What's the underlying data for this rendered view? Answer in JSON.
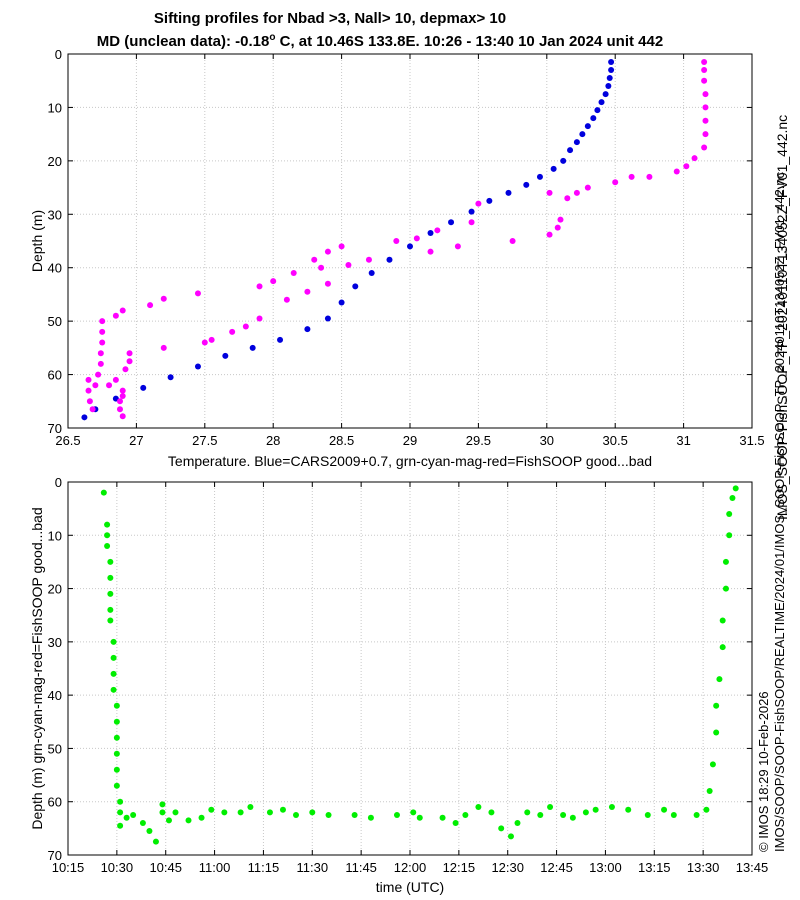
{
  "title_line1": "Sifting profiles for Nbad >3, Nall> 10, depmax> 10",
  "title_line2_prefix": "MD (unclean data): -0.18",
  "title_line2_sup": "o",
  "title_line2_suffix": " C, at 10.46S 133.8E. 10:26 - 13:40 10 Jan 2024 unit 442",
  "side_text_right": "IMOS_SOOP-FishSOOP_TP_20240110T134052Z_FV01_442.nc",
  "side_text_bottom": "IMOS/SOOP/SOOP-FishSOOP/REALTIME/2024/01/IMOS_SOOP-FishSOOP_TP_20240110T134052Z_FV01_442.nc",
  "side_text_credit": "© IMOS 18:29 10-Feb-2026",
  "colors": {
    "cars": "#0000dd",
    "bad": "#ff00ff",
    "good": "#00ee00",
    "grid": "#c8c8c8"
  },
  "chart_data": [
    {
      "type": "scatter",
      "xlabel": "Temperature. Blue=CARS2009+0.7, grn-cyan-mag-red=FishSOOP good...bad",
      "ylabel": "Depth (m)",
      "xlim": [
        26.5,
        31.5
      ],
      "ylim": [
        70,
        0
      ],
      "xticks": [
        "26.5",
        "27",
        "27.5",
        "28",
        "28.5",
        "29",
        "29.5",
        "30",
        "30.5",
        "31",
        "31.5"
      ],
      "yticks": [
        "0",
        "10",
        "20",
        "30",
        "40",
        "50",
        "60",
        "70"
      ],
      "grid": true,
      "series": [
        {
          "color": "#0000dd",
          "points": [
            [
              30.47,
              1.5
            ],
            [
              30.47,
              3
            ],
            [
              30.46,
              4.5
            ],
            [
              30.45,
              6
            ],
            [
              30.43,
              7.5
            ],
            [
              30.4,
              9
            ],
            [
              30.37,
              10.5
            ],
            [
              30.34,
              12
            ],
            [
              30.3,
              13.5
            ],
            [
              30.26,
              15
            ],
            [
              30.22,
              16.5
            ],
            [
              30.17,
              18
            ],
            [
              30.12,
              20
            ],
            [
              30.05,
              21.5
            ],
            [
              29.95,
              23
            ],
            [
              29.85,
              24.5
            ],
            [
              29.72,
              26
            ],
            [
              29.58,
              27.5
            ],
            [
              29.45,
              29.5
            ],
            [
              29.3,
              31.5
            ],
            [
              29.15,
              33.5
            ],
            [
              29.0,
              36
            ],
            [
              28.85,
              38.5
            ],
            [
              28.72,
              41
            ],
            [
              28.6,
              43.5
            ],
            [
              28.5,
              46.5
            ],
            [
              28.4,
              49.5
            ],
            [
              28.25,
              51.5
            ],
            [
              28.05,
              53.5
            ],
            [
              27.85,
              55
            ],
            [
              27.65,
              56.5
            ],
            [
              27.45,
              58.5
            ],
            [
              27.25,
              60.5
            ],
            [
              27.05,
              62.5
            ],
            [
              26.85,
              64.5
            ],
            [
              26.7,
              66.5
            ],
            [
              26.62,
              68
            ]
          ]
        },
        {
          "color": "#ff00ff",
          "points": [
            [
              31.15,
              1.5
            ],
            [
              31.15,
              3
            ],
            [
              31.15,
              5
            ],
            [
              31.16,
              7.5
            ],
            [
              31.16,
              10
            ],
            [
              31.16,
              12.5
            ],
            [
              31.16,
              15
            ],
            [
              31.15,
              17.5
            ],
            [
              31.08,
              19.5
            ],
            [
              31.02,
              21
            ],
            [
              30.95,
              22
            ],
            [
              30.75,
              23
            ],
            [
              30.62,
              23
            ],
            [
              30.5,
              24
            ],
            [
              30.3,
              25
            ],
            [
              30.22,
              26
            ],
            [
              30.15,
              27
            ],
            [
              30.1,
              31
            ],
            [
              30.08,
              32.5
            ],
            [
              30.02,
              33.8
            ],
            [
              30.02,
              26
            ],
            [
              29.75,
              35
            ],
            [
              29.5,
              28
            ],
            [
              29.45,
              31.5
            ],
            [
              29.35,
              36
            ],
            [
              29.2,
              33
            ],
            [
              29.15,
              37
            ],
            [
              29.05,
              34.5
            ],
            [
              28.9,
              35
            ],
            [
              28.5,
              36
            ],
            [
              28.7,
              38.5
            ],
            [
              28.55,
              39.5
            ],
            [
              28.4,
              37
            ],
            [
              28.3,
              38.5
            ],
            [
              28.35,
              40
            ],
            [
              28.15,
              41
            ],
            [
              28.0,
              42.5
            ],
            [
              28.4,
              43
            ],
            [
              28.25,
              44.5
            ],
            [
              28.1,
              46
            ],
            [
              27.9,
              43.5
            ],
            [
              27.45,
              44.8
            ],
            [
              27.2,
              45.8
            ],
            [
              27.1,
              47
            ],
            [
              26.9,
              48
            ],
            [
              26.85,
              49
            ],
            [
              27.9,
              49.5
            ],
            [
              27.8,
              51
            ],
            [
              27.7,
              52
            ],
            [
              27.55,
              53.5
            ],
            [
              27.5,
              54
            ],
            [
              27.2,
              55
            ],
            [
              26.75,
              50
            ],
            [
              26.75,
              52
            ],
            [
              26.75,
              54
            ],
            [
              26.74,
              56
            ],
            [
              26.74,
              58
            ],
            [
              26.72,
              60
            ],
            [
              26.7,
              62
            ],
            [
              26.65,
              61
            ],
            [
              26.65,
              63
            ],
            [
              26.66,
              65
            ],
            [
              26.68,
              66.5
            ],
            [
              26.8,
              62
            ],
            [
              26.85,
              61
            ],
            [
              26.9,
              63
            ],
            [
              26.9,
              64
            ],
            [
              26.88,
              65
            ],
            [
              26.88,
              66.5
            ],
            [
              26.9,
              67.8
            ],
            [
              26.95,
              56
            ],
            [
              26.95,
              57.5
            ],
            [
              26.92,
              59
            ]
          ]
        }
      ]
    },
    {
      "type": "scatter",
      "xlabel": "time (UTC)",
      "ylabel": "Depth (m) grn-cyan-mag-red=FishSOOP good...bad",
      "xlim": [
        "10:15",
        "13:45"
      ],
      "ylim": [
        70,
        0
      ],
      "xticks": [
        "10:15",
        "10:30",
        "10:45",
        "11:00",
        "11:15",
        "11:30",
        "11:45",
        "12:00",
        "12:15",
        "12:30",
        "12:45",
        "13:00",
        "13:15",
        "13:30",
        "13:45"
      ],
      "yticks": [
        "0",
        "10",
        "20",
        "30",
        "40",
        "50",
        "60",
        "70"
      ],
      "grid": true,
      "series": [
        {
          "color": "#00ee00",
          "points": [
            [
              "10:26",
              2
            ],
            [
              "10:27",
              8
            ],
            [
              "10:27",
              10
            ],
            [
              "10:27",
              12
            ],
            [
              "10:28",
              15
            ],
            [
              "10:28",
              18
            ],
            [
              "10:28",
              21
            ],
            [
              "10:28",
              24
            ],
            [
              "10:28",
              26
            ],
            [
              "10:29",
              30
            ],
            [
              "10:29",
              33
            ],
            [
              "10:29",
              36
            ],
            [
              "10:29",
              39
            ],
            [
              "10:30",
              42
            ],
            [
              "10:30",
              45
            ],
            [
              "10:30",
              48
            ],
            [
              "10:30",
              51
            ],
            [
              "10:30",
              54
            ],
            [
              "10:30",
              57
            ],
            [
              "10:31",
              60
            ],
            [
              "10:31",
              62
            ],
            [
              "10:31",
              64.5
            ],
            [
              "10:33",
              63
            ],
            [
              "10:35",
              62.5
            ],
            [
              "10:38",
              64
            ],
            [
              "10:40",
              65.5
            ],
            [
              "10:42",
              67.5
            ],
            [
              "10:44",
              60.5
            ],
            [
              "10:44",
              62
            ],
            [
              "10:46",
              63.5
            ],
            [
              "10:48",
              62
            ],
            [
              "10:52",
              63.5
            ],
            [
              "10:56",
              63
            ],
            [
              "10:59",
              61.5
            ],
            [
              "11:03",
              62
            ],
            [
              "11:08",
              62
            ],
            [
              "11:11",
              61
            ],
            [
              "11:17",
              62
            ],
            [
              "11:21",
              61.5
            ],
            [
              "11:25",
              62.5
            ],
            [
              "11:30",
              62
            ],
            [
              "11:35",
              62.5
            ],
            [
              "11:43",
              62.5
            ],
            [
              "11:48",
              63
            ],
            [
              "11:56",
              62.5
            ],
            [
              "12:01",
              62
            ],
            [
              "12:03",
              63
            ],
            [
              "12:10",
              63
            ],
            [
              "12:14",
              64
            ],
            [
              "12:17",
              62.5
            ],
            [
              "12:21",
              61
            ],
            [
              "12:25",
              62
            ],
            [
              "12:28",
              65
            ],
            [
              "12:31",
              66.5
            ],
            [
              "12:33",
              64
            ],
            [
              "12:36",
              62
            ],
            [
              "12:40",
              62.5
            ],
            [
              "12:43",
              61
            ],
            [
              "12:47",
              62.5
            ],
            [
              "12:50",
              63
            ],
            [
              "12:54",
              62
            ],
            [
              "12:57",
              61.5
            ],
            [
              "13:02",
              61
            ],
            [
              "13:07",
              61.5
            ],
            [
              "13:13",
              62.5
            ],
            [
              "13:18",
              61.5
            ],
            [
              "13:21",
              62.5
            ],
            [
              "13:28",
              62.5
            ],
            [
              "13:31",
              61.5
            ],
            [
              "13:32",
              58
            ],
            [
              "13:33",
              53
            ],
            [
              "13:34",
              47
            ],
            [
              "13:34",
              42
            ],
            [
              "13:35",
              37
            ],
            [
              "13:36",
              31
            ],
            [
              "13:36",
              26
            ],
            [
              "13:37",
              20
            ],
            [
              "13:37",
              15
            ],
            [
              "13:38",
              10
            ],
            [
              "13:38",
              6
            ],
            [
              "13:39",
              3
            ],
            [
              "13:40",
              1.2
            ]
          ]
        }
      ]
    }
  ]
}
